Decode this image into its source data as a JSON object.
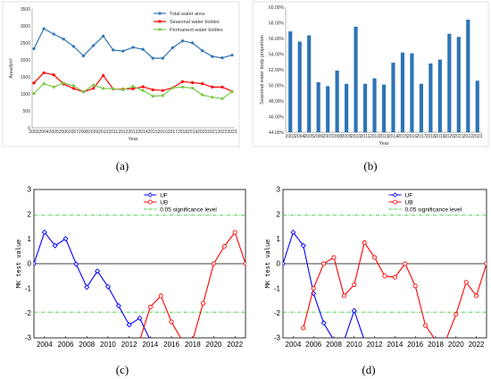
{
  "panel_labels": [
    "(a)",
    "(b)",
    "(c)",
    "(d)"
  ],
  "colors": {
    "total": "#2e75b6",
    "seasonal": "#ff0000",
    "permanent": "#7ac943",
    "bar": "#2e75b6",
    "uf": "#0000ff",
    "ub": "#ff0000",
    "sig": "#33cc33"
  },
  "chart_data": [
    {
      "type": "line",
      "x": [
        2003,
        2004,
        2005,
        2006,
        2007,
        2008,
        2009,
        2010,
        2011,
        2012,
        2013,
        2014,
        2015,
        2016,
        2017,
        2018,
        2019,
        2020,
        2021,
        2022,
        2023
      ],
      "xlabel": "Year",
      "ylabel": "Area/km²",
      "ytick_labels": [
        "0",
        "500",
        "1000",
        "1500",
        "2000",
        "2500",
        "3000",
        "3500"
      ],
      "ylim": [
        0,
        3500
      ],
      "grid": false,
      "legend_position": "top-center",
      "series": [
        {
          "name": "Total water area",
          "color_key": "total",
          "values": [
            2330,
            2920,
            2760,
            2610,
            2400,
            2120,
            2420,
            2700,
            2290,
            2260,
            2370,
            2310,
            2050,
            2050,
            2360,
            2560,
            2500,
            2270,
            2100,
            2060,
            2140
          ]
        },
        {
          "name": "Seasonal water bodies",
          "color_key": "seasonal",
          "values": [
            1320,
            1620,
            1560,
            1290,
            1160,
            1060,
            1160,
            1540,
            1140,
            1140,
            1150,
            1210,
            1120,
            1100,
            1180,
            1360,
            1330,
            1300,
            1200,
            1200,
            1070
          ]
        },
        {
          "name": "Permanent water bodies",
          "color_key": "permanent",
          "values": [
            1010,
            1300,
            1200,
            1320,
            1240,
            1060,
            1260,
            1160,
            1150,
            1120,
            1220,
            1100,
            930,
            950,
            1180,
            1200,
            1170,
            970,
            900,
            860,
            1070
          ]
        }
      ]
    },
    {
      "type": "bar",
      "categories": [
        "2003",
        "2004",
        "2005",
        "2006",
        "2007",
        "2008",
        "2009",
        "2010",
        "2011",
        "2012",
        "2013",
        "2014",
        "2015",
        "2016",
        "2017",
        "2018",
        "2019",
        "2020",
        "2021",
        "2022",
        "2023"
      ],
      "values": [
        56.9,
        55.6,
        56.4,
        50.4,
        49.9,
        51.9,
        50.2,
        57.5,
        50.2,
        50.9,
        50.1,
        52.9,
        54.2,
        54.1,
        50.2,
        52.8,
        53.3,
        56.6,
        56.2,
        58.4,
        50.6
      ],
      "xlabel": "Year",
      "ylabel": "Seasonal water body proportion",
      "ytick_labels": [
        "44.00%",
        "46.00%",
        "48.00%",
        "50.00%",
        "52.00%",
        "54.00%",
        "56.00%",
        "58.00%",
        "60.00%"
      ],
      "ylim": [
        44,
        60
      ],
      "grid": false
    },
    {
      "type": "line",
      "ylabel": "MK test value",
      "xtick_labels": [
        "2004",
        "2006",
        "2008",
        "2010",
        "2012",
        "2014",
        "2016",
        "2018",
        "2020",
        "2022"
      ],
      "ytick_labels": [
        "-3",
        "-2",
        "-1",
        "0",
        "1",
        "2",
        "3"
      ],
      "xlim": [
        2003,
        2023
      ],
      "ylim": [
        -3,
        3
      ],
      "legend_position": "top-right",
      "reference_lines": [
        {
          "name": "0.05 significance level",
          "values": [
            1.96,
            -1.96
          ]
        },
        {
          "values": [
            0
          ]
        }
      ],
      "series": [
        {
          "name": "UF",
          "color_key": "uf",
          "x": [
            2003,
            2004,
            2005,
            2006,
            2007,
            2008,
            2009,
            2010,
            2011,
            2012,
            2013,
            2014
          ],
          "values": [
            0,
            1.27,
            0.73,
            1.01,
            -0.02,
            -0.95,
            -0.3,
            -0.93,
            -1.7,
            -2.47,
            -2.2,
            -3.1
          ]
        },
        {
          "name": "UB",
          "color_key": "ub",
          "x": [
            2013,
            2014,
            2015,
            2016,
            2017,
            2018,
            2019,
            2020,
            2021,
            2022,
            2023
          ],
          "values": [
            -3.1,
            -1.75,
            -1.3,
            -2.35,
            -3.1,
            -3.1,
            -1.6,
            0,
            0.7,
            1.27,
            0
          ]
        }
      ]
    },
    {
      "type": "line",
      "ylabel": "MK test value",
      "xtick_labels": [
        "2004",
        "2006",
        "2008",
        "2010",
        "2012",
        "2014",
        "2016",
        "2018",
        "2020",
        "2022"
      ],
      "ytick_labels": [
        "-3",
        "-2",
        "-1",
        "0",
        "1",
        "2",
        "3"
      ],
      "xlim": [
        2003,
        2023
      ],
      "ylim": [
        -3,
        3
      ],
      "legend_position": "top-right",
      "reference_lines": [
        {
          "name": "0.05 significance level",
          "values": [
            1.96,
            -1.96
          ]
        },
        {
          "values": [
            0
          ]
        }
      ],
      "series": [
        {
          "name": "UF",
          "color_key": "uf",
          "x": [
            2003,
            2004,
            2005,
            2006,
            2007,
            2008,
            2009,
            2010,
            2011
          ],
          "values": [
            0,
            1.27,
            0.73,
            -1.2,
            -2.4,
            -3.1,
            -3.1,
            -1.9,
            -3.1
          ]
        },
        {
          "name": "UB",
          "color_key": "ub",
          "x": [
            2005,
            2006,
            2007,
            2008,
            2009,
            2010,
            2011,
            2012,
            2013,
            2014,
            2015,
            2016,
            2017,
            2018,
            2019,
            2020,
            2021,
            2022,
            2023
          ],
          "values": [
            -2.6,
            -1.0,
            0,
            0.25,
            -1.3,
            -0.85,
            0.85,
            0.25,
            -0.5,
            -0.55,
            0,
            -0.9,
            -2.5,
            -3.1,
            -3.1,
            -2.05,
            -0.75,
            -1.3,
            0
          ]
        }
      ]
    }
  ]
}
